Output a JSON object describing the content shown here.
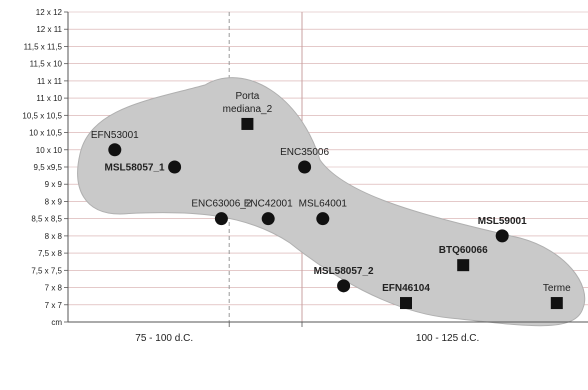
{
  "chart_data": {
    "type": "scatter",
    "y_tick_labels": [
      "12 x 12",
      "12 x 11",
      "11,5 x 11,5",
      "11,5 x 10",
      "11 x 11",
      "11 x 10",
      "10,5 x 10,5",
      "10 x 10,5",
      "10 x 10",
      "9,5 x9,5",
      "9 x 9",
      "8 x 9",
      "8,5 x 8,5",
      "8 x 8",
      "7,5 x 8",
      "7,5 x 7,5",
      "7 x 8",
      "7 x 7",
      "cm"
    ],
    "x_categories": [
      "75 - 100 d.C.",
      "100 - 125 d.C."
    ],
    "x_range": [
      0,
      10
    ],
    "y_range": [
      0,
      18
    ],
    "grid": true,
    "highlight_region": true,
    "points": [
      {
        "label": "EFN53001",
        "x": 0.9,
        "y": 10,
        "marker": "circle",
        "bold": false,
        "label_pos": "above"
      },
      {
        "label": "MSL58057_1",
        "x": 2.05,
        "y": 9,
        "marker": "circle",
        "bold": true,
        "label_pos": "left"
      },
      {
        "label": "Porta\nmediana_2",
        "x": 3.45,
        "y": 11.5,
        "marker": "square",
        "bold": false,
        "label_pos": "above"
      },
      {
        "label": "ENC35006",
        "x": 4.55,
        "y": 9,
        "marker": "circle",
        "bold": false,
        "label_pos": "above"
      },
      {
        "label": "ENC63006_2",
        "x": 2.95,
        "y": 6,
        "marker": "circle",
        "bold": false,
        "label_pos": "above"
      },
      {
        "label": "ENC42001",
        "x": 3.85,
        "y": 6,
        "marker": "circle",
        "bold": false,
        "label_pos": "above"
      },
      {
        "label": "MSL64001",
        "x": 4.9,
        "y": 6,
        "marker": "circle",
        "bold": false,
        "label_pos": "above"
      },
      {
        "label": "MSL59001",
        "x": 8.35,
        "y": 5,
        "marker": "circle",
        "bold": true,
        "label_pos": "above"
      },
      {
        "label": "BTQ60066",
        "x": 7.6,
        "y": 3.3,
        "marker": "square",
        "bold": true,
        "label_pos": "above"
      },
      {
        "label": "MSL58057_2",
        "x": 5.3,
        "y": 2.1,
        "marker": "circle",
        "bold": true,
        "label_pos": "above"
      },
      {
        "label": "EFN46104",
        "x": 6.5,
        "y": 1.1,
        "marker": "square",
        "bold": true,
        "label_pos": "above"
      },
      {
        "label": "Terme",
        "x": 9.4,
        "y": 1.1,
        "marker": "square",
        "bold": false,
        "label_pos": "above"
      }
    ]
  }
}
